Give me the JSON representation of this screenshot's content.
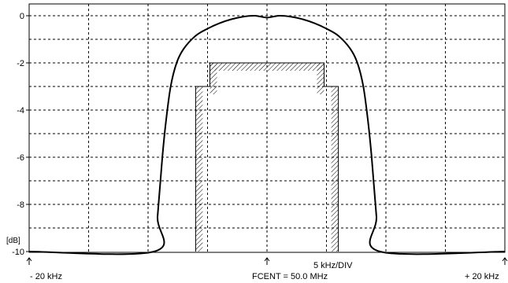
{
  "chart_data": {
    "type": "line",
    "title": "",
    "ylabel": "[dB]",
    "ylim": [
      -10,
      0
    ],
    "xlim": [
      -20,
      20
    ],
    "y_ticks": [
      0,
      -2,
      -4,
      -6,
      -8,
      -10
    ],
    "y_tick_labels": [
      "0",
      "-2",
      "-4",
      "-6",
      "-8",
      "-10"
    ],
    "x_grid_step": 5,
    "y_grid_step": 1,
    "grid": true,
    "x_labels": {
      "left": "- 20 kHz",
      "center": "FCENT = 50.0 MHz",
      "right": "+ 20 kHz",
      "scale": "5 kHz/DIV"
    },
    "series": [
      {
        "points": [
          [
            -20,
            -10.0
          ],
          [
            -9.5,
            -10.0
          ],
          [
            -9.2,
            -8.5
          ],
          [
            -8.8,
            -6.0
          ],
          [
            -8.5,
            -4.5
          ],
          [
            -8.1,
            -3.0
          ],
          [
            -7.6,
            -2.0
          ],
          [
            -7.0,
            -1.4
          ],
          [
            -6.0,
            -0.85
          ],
          [
            -5.0,
            -0.55
          ],
          [
            -4.0,
            -0.32
          ],
          [
            -3.0,
            -0.15
          ],
          [
            -2.0,
            -0.04
          ],
          [
            -1.0,
            0.0
          ],
          [
            0.0,
            -0.08
          ],
          [
            1.0,
            0.0
          ],
          [
            2.0,
            -0.04
          ],
          [
            3.0,
            -0.15
          ],
          [
            4.0,
            -0.32
          ],
          [
            5.0,
            -0.55
          ],
          [
            6.0,
            -0.85
          ],
          [
            7.0,
            -1.4
          ],
          [
            7.6,
            -2.0
          ],
          [
            8.1,
            -3.0
          ],
          [
            8.5,
            -4.5
          ],
          [
            8.8,
            -6.0
          ],
          [
            9.2,
            -8.5
          ],
          [
            9.5,
            -10.0
          ],
          [
            20,
            -10.0
          ]
        ]
      }
    ],
    "mask": {
      "outer_x": [
        -6.0,
        6.0
      ],
      "outer_level": -3.0,
      "inner_x": [
        -4.8,
        4.8
      ],
      "inner_level": -2.0,
      "floor": -10.0
    }
  }
}
